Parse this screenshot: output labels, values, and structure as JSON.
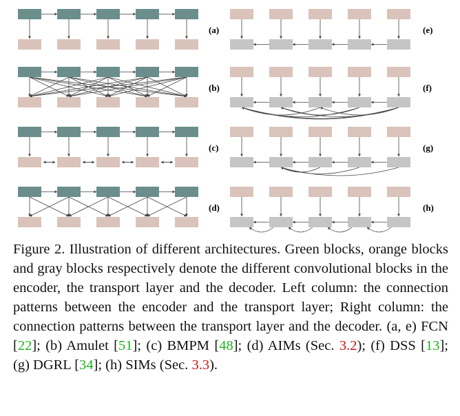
{
  "colors": {
    "encoder": "#6b8e8c",
    "transport": "#d9c3ba",
    "decoder": "#c5c5c5",
    "line": "#444444",
    "ref_green": "#1db31d",
    "ref_red": "#d21414"
  },
  "panels": [
    {
      "label": "(a)",
      "side": "left",
      "top": "encoder",
      "pattern": "one-to-one",
      "bottom_links": "none"
    },
    {
      "label": "(b)",
      "side": "left",
      "top": "encoder",
      "pattern": "all-to-all",
      "bottom_links": "none"
    },
    {
      "label": "(c)",
      "side": "left",
      "top": "encoder",
      "pattern": "one-to-one",
      "bottom_links": "bidirectional"
    },
    {
      "label": "(d)",
      "side": "left",
      "top": "encoder",
      "pattern": "neighbor",
      "bottom_links": "none"
    },
    {
      "label": "(e)",
      "side": "right",
      "top": "transport",
      "pattern": "one-to-one",
      "bottom_links": "right-to-left"
    },
    {
      "label": "(f)",
      "side": "right",
      "top": "transport",
      "pattern": "one-to-one",
      "bottom_links": "dense-arcs"
    },
    {
      "label": "(g)",
      "side": "right",
      "top": "transport",
      "pattern": "one-to-one",
      "bottom_links": "global-arcs"
    },
    {
      "label": "(h)",
      "side": "right",
      "top": "transport",
      "pattern": "one-to-one",
      "bottom_links": "local-arcs"
    }
  ],
  "caption": {
    "intro": "Figure 2. Illustration of different architectures. Green blocks, orange blocks and gray blocks respectively denote the different convolutional blocks in the encoder, the transport layer and the decoder. Left column: the connection patterns between the encoder and the transport layer; Right column: the connection patterns between the transport layer and the decoder. (a, e) FCN [",
    "ref_fcn": "22",
    "s1": "]; (b) Amulet [",
    "ref_amulet": "51",
    "s2": "]; (c) BMPM [",
    "ref_bmpm": "48",
    "s3": "]; (d) AIMs (Sec. ",
    "sec_aims": "3.2",
    "s4": "); (f) DSS [",
    "ref_dss": "13",
    "s5": "]; (g) DGRL [",
    "ref_dgrl": "34",
    "s6": "]; (h) SIMs (Sec. ",
    "sec_sims": "3.3",
    "s7": ")."
  }
}
